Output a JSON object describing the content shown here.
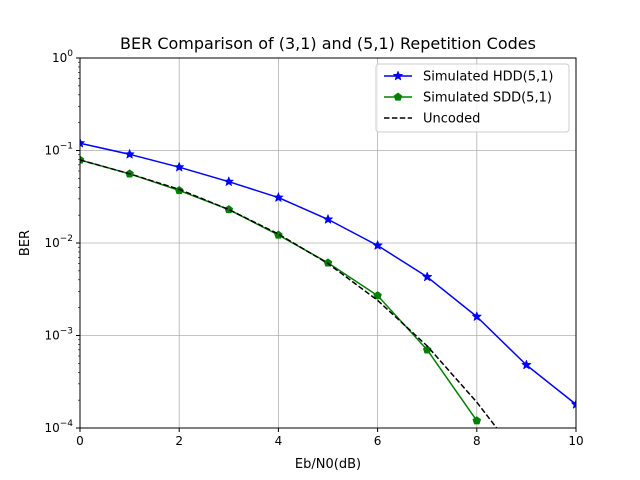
{
  "chart_data": {
    "type": "line",
    "title": "BER Comparison of (3,1) and (5,1) Repetition Codes",
    "xlabel": "Eb/N0(dB)",
    "ylabel": "BER",
    "xlim": [
      0,
      10
    ],
    "ylim": [
      0.0001,
      1
    ],
    "yscale": "log",
    "grid": true,
    "legend_position": "top-right",
    "x_ticks": [
      0,
      2,
      4,
      6,
      8,
      10
    ],
    "y_ticks": [
      {
        "value": 0.0001,
        "base": "10",
        "exp": "−4"
      },
      {
        "value": 0.001,
        "base": "10",
        "exp": "−3"
      },
      {
        "value": 0.01,
        "base": "10",
        "exp": "−2"
      },
      {
        "value": 0.1,
        "base": "10",
        "exp": "−1"
      },
      {
        "value": 1,
        "base": "10",
        "exp": "0"
      }
    ],
    "series": [
      {
        "name": "Simulated HDD(5,1)",
        "color": "#0000ff",
        "marker": "star",
        "linestyle": "solid",
        "x": [
          0,
          1,
          2,
          3,
          4,
          5,
          6,
          7,
          8,
          9,
          10
        ],
        "y": [
          0.12,
          0.091,
          0.066,
          0.046,
          0.031,
          0.018,
          0.0094,
          0.0043,
          0.0016,
          0.00048,
          0.00018
        ]
      },
      {
        "name": "Simulated SDD(5,1)",
        "color": "#008000",
        "marker": "pentagon",
        "linestyle": "solid",
        "x": [
          0,
          1,
          2,
          3,
          4,
          5,
          6,
          7,
          8
        ],
        "y": [
          0.079,
          0.056,
          0.037,
          0.023,
          0.0122,
          0.0061,
          0.0027,
          0.0007,
          0.00012
        ]
      },
      {
        "name": "Uncoded",
        "color": "#000000",
        "marker": "none",
        "linestyle": "dashed",
        "x": [
          0,
          1,
          2,
          3,
          4,
          5,
          6,
          7,
          8,
          8.4
        ],
        "y": [
          0.079,
          0.056,
          0.038,
          0.023,
          0.0125,
          0.006,
          0.0024,
          0.00077,
          0.00019,
          0.0001
        ]
      }
    ]
  }
}
